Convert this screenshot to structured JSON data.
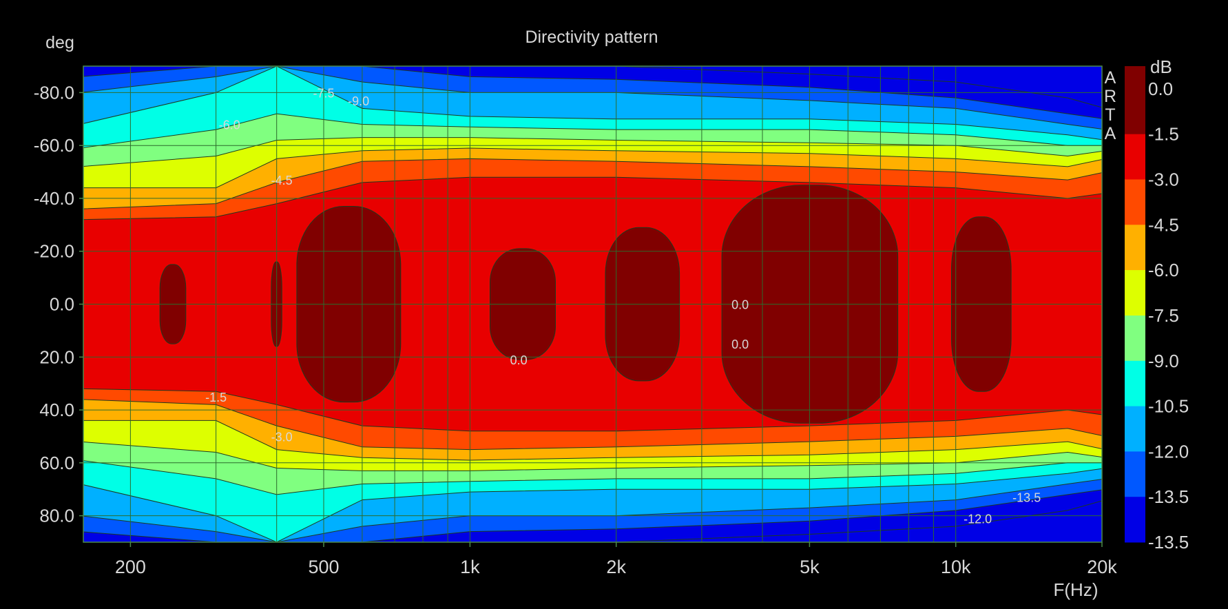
{
  "chart_data": {
    "type": "heatmap",
    "title": "Directivity pattern",
    "xlabel": "F(Hz)",
    "ylabel": "deg",
    "x_scale": "log",
    "xlim": [
      160,
      20000
    ],
    "ylim": [
      -90,
      90
    ],
    "x_ticks": [
      {
        "value": 200,
        "label": "200"
      },
      {
        "value": 500,
        "label": "500"
      },
      {
        "value": 1000,
        "label": "1k"
      },
      {
        "value": 2000,
        "label": "2k"
      },
      {
        "value": 5000,
        "label": "5k"
      },
      {
        "value": 10000,
        "label": "10k"
      },
      {
        "value": 20000,
        "label": "20k"
      }
    ],
    "y_ticks": [
      {
        "value": -80,
        "label": "-80.0"
      },
      {
        "value": -60,
        "label": "-60.0"
      },
      {
        "value": -40,
        "label": "-40.0"
      },
      {
        "value": -20,
        "label": "-20.0"
      },
      {
        "value": 0,
        "label": "0.0"
      },
      {
        "value": 20,
        "label": "20.0"
      },
      {
        "value": 40,
        "label": "40.0"
      },
      {
        "value": 60,
        "label": "60.0"
      },
      {
        "value": 80,
        "label": "80.0"
      }
    ],
    "grid": true,
    "colorbar": {
      "unit": "dB",
      "levels": [
        {
          "label": "0.0",
          "color": "#800000"
        },
        {
          "label": "-1.5",
          "color": "#e80000"
        },
        {
          "label": "-3.0",
          "color": "#ff4a00"
        },
        {
          "label": "-4.5",
          "color": "#ffb000"
        },
        {
          "label": "-6.0",
          "color": "#ddff00"
        },
        {
          "label": "-7.5",
          "color": "#80ff80"
        },
        {
          "label": "-9.0",
          "color": "#00ffe6"
        },
        {
          "label": "-10.5",
          "color": "#00b0ff"
        },
        {
          "label": "-12.0",
          "color": "#0058ff"
        },
        {
          "label": "-13.5",
          "color": "#0000e6"
        }
      ],
      "bottom_label": "-13.5"
    },
    "contour_bands": [
      {
        "level": -1.5,
        "color": "#e80000",
        "freq": [
          160,
          300,
          400,
          600,
          1000,
          2000,
          5000,
          10000,
          17000,
          20000
        ],
        "half_width_deg": [
          32,
          33,
          38,
          46,
          48,
          48,
          46,
          44,
          40,
          42
        ]
      },
      {
        "level": -3.0,
        "color": "#ff4a00",
        "freq": [
          160,
          300,
          400,
          600,
          1000,
          2000,
          5000,
          10000,
          17000,
          20000
        ],
        "half_width_deg": [
          36,
          38,
          46,
          54,
          55,
          54,
          52,
          50,
          47,
          50
        ]
      },
      {
        "level": -4.5,
        "color": "#ffb000",
        "freq": [
          160,
          300,
          400,
          600,
          1000,
          2000,
          5000,
          10000,
          17000,
          20000
        ],
        "half_width_deg": [
          44,
          44,
          55,
          58,
          59,
          58,
          57,
          55,
          52,
          55
        ]
      },
      {
        "level": -6.0,
        "color": "#ddff00",
        "freq": [
          160,
          300,
          400,
          600,
          1000,
          2000,
          5000,
          10000,
          17000,
          20000
        ],
        "half_width_deg": [
          52,
          56,
          62,
          63,
          63,
          62,
          61,
          60,
          56,
          58
        ]
      },
      {
        "level": -7.5,
        "color": "#80ff80",
        "freq": [
          160,
          300,
          400,
          600,
          1000,
          2000,
          5000,
          10000,
          17000,
          20000
        ],
        "half_width_deg": [
          59,
          66,
          72,
          68,
          67,
          66,
          66,
          64,
          60,
          60
        ]
      },
      {
        "level": -9.0,
        "color": "#00ffe6",
        "freq": [
          160,
          300,
          400,
          600,
          1000,
          2000,
          5000,
          10000,
          17000,
          20000
        ],
        "half_width_deg": [
          68,
          80,
          90,
          74,
          71,
          70,
          70,
          68,
          64,
          62
        ]
      },
      {
        "level": -10.5,
        "color": "#00b0ff",
        "freq": [
          160,
          300,
          400,
          600,
          1000,
          2000,
          5000,
          10000,
          17000,
          20000
        ],
        "half_width_deg": [
          80,
          86,
          90,
          84,
          80,
          80,
          77,
          74,
          68,
          66
        ]
      },
      {
        "level": -12.0,
        "color": "#0058ff",
        "freq": [
          160,
          300,
          400,
          600,
          1000,
          2000,
          5000,
          10000,
          17000,
          20000
        ],
        "half_width_deg": [
          86,
          90,
          90,
          90,
          86,
          85,
          82,
          78,
          72,
          70
        ]
      },
      {
        "level": -13.5,
        "color": "#0000e6",
        "freq": [
          160,
          300,
          400,
          600,
          1000,
          2000,
          5000,
          10000,
          17000,
          20000
        ],
        "half_width_deg": [
          90,
          90,
          90,
          90,
          90,
          90,
          87,
          84,
          78,
          74
        ]
      }
    ],
    "zero_db_regions": [
      {
        "freq": [
          230,
          260
        ],
        "half_width_deg": 15
      },
      {
        "freq": [
          390,
          410
        ],
        "half_width_deg": 16
      },
      {
        "freq": [
          440,
          720
        ],
        "half_width_deg": 37
      },
      {
        "freq": [
          1100,
          1500
        ],
        "half_width_deg": 21
      },
      {
        "freq": [
          1900,
          2700
        ],
        "half_width_deg": 29
      },
      {
        "freq": [
          3300,
          7600
        ],
        "half_width_deg": 45
      },
      {
        "freq": [
          9800,
          13000
        ],
        "half_width_deg": 33
      }
    ],
    "contour_labels": [
      {
        "text": "-7.5",
        "freq": 500,
        "deg": -80
      },
      {
        "text": "-9.0",
        "freq": 590,
        "deg": -77
      },
      {
        "text": "-6.0",
        "freq": 320,
        "deg": -68
      },
      {
        "text": "-4.5",
        "freq": 410,
        "deg": -47
      },
      {
        "text": "0.0",
        "freq": 3600,
        "deg": 0
      },
      {
        "text": "0.0",
        "freq": 3600,
        "deg": 15
      },
      {
        "text": "0.0",
        "freq": 1260,
        "deg": 21
      },
      {
        "text": "-1.5",
        "freq": 300,
        "deg": 35
      },
      {
        "text": "-3.0",
        "freq": 410,
        "deg": 50
      },
      {
        "text": "-13.5",
        "freq": 14000,
        "deg": 73
      },
      {
        "text": "-12.0",
        "freq": 11100,
        "deg": 81
      }
    ],
    "watermark": [
      "A",
      "R",
      "T",
      "A"
    ]
  }
}
